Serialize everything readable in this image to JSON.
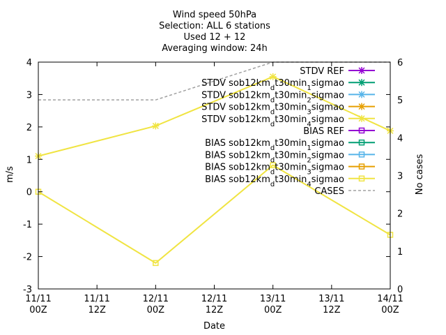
{
  "chart_data": {
    "type": "line",
    "title_lines": [
      "Wind speed 50hPa",
      "Selection: ALL      6 stations",
      "Used 12 + 12",
      "Averaging window: 24h"
    ],
    "xlabel": "Date",
    "ylabel": "m/s",
    "y2label": "No cases",
    "x_ticks": [
      "11/11\n00Z",
      "11/11\n12Z",
      "12/11\n00Z",
      "12/11\n12Z",
      "13/11\n00Z",
      "13/11\n12Z",
      "14/11\n00Z"
    ],
    "xlim": [
      0,
      6
    ],
    "ylim": [
      -3,
      4
    ],
    "y_ticks": [
      -3,
      -2,
      -1,
      0,
      1,
      2,
      3,
      4
    ],
    "y2lim": [
      0,
      6
    ],
    "y2_ticks": [
      0,
      1,
      2,
      3,
      4,
      5,
      6
    ],
    "grid": false,
    "legend_position": "top-right",
    "series": [
      {
        "name": "STDV REF",
        "color": "#9400d3",
        "marker": "x",
        "x": [],
        "y": []
      },
      {
        "name": "STDV sob12km_dt30min_1sigmao",
        "color": "#009e73",
        "marker": "x",
        "x": [],
        "y": []
      },
      {
        "name": "STDV sob12km_dt30min_2sigmao",
        "color": "#56b4e9",
        "marker": "x",
        "x": [],
        "y": []
      },
      {
        "name": "STDV sob12km_dt30min_3sigmao",
        "color": "#e69f00",
        "marker": "x",
        "x": [],
        "y": []
      },
      {
        "name": "STDV sob12km_dt30min_4sigmao",
        "color": "#f0e442",
        "marker": "x",
        "x": [
          0,
          2,
          4,
          6
        ],
        "y": [
          1.1,
          2.03,
          3.55,
          1.88
        ]
      },
      {
        "name": "BIAS REF",
        "color": "#9400d3",
        "marker": "square",
        "x": [],
        "y": []
      },
      {
        "name": "BIAS sob12km_dt30min_1sigmao",
        "color": "#009e73",
        "marker": "square",
        "x": [],
        "y": []
      },
      {
        "name": "BIAS sob12km_dt30min_2sigmao",
        "color": "#56b4e9",
        "marker": "square",
        "x": [],
        "y": []
      },
      {
        "name": "BIAS sob12km_dt30min_3sigmao",
        "color": "#e69f00",
        "marker": "square",
        "x": [],
        "y": []
      },
      {
        "name": "BIAS sob12km_dt30min_4sigmao",
        "color": "#f0e442",
        "marker": "square",
        "x": [
          0,
          2,
          4,
          6
        ],
        "y": [
          0.0,
          -2.2,
          0.82,
          -1.33
        ]
      },
      {
        "name": "CASES",
        "color": "#a0a0a0",
        "marker": "none",
        "dashed": true,
        "axis": "y2",
        "x": [
          0,
          2,
          4,
          6
        ],
        "y": [
          5,
          5,
          6,
          6
        ]
      }
    ]
  }
}
